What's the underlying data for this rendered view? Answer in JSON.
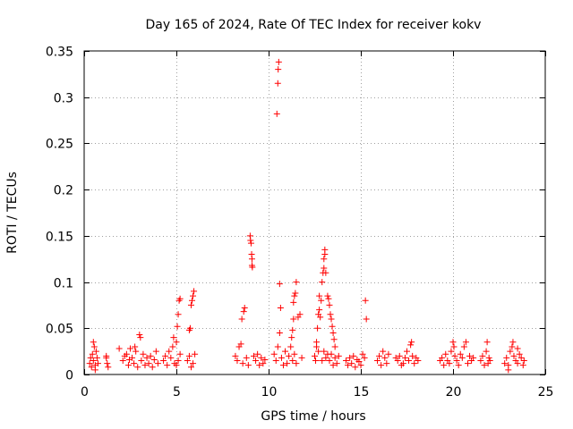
{
  "chart_data": {
    "type": "scatter",
    "title": "Day 165 of 2024, Rate Of TEC Index for receiver kokv",
    "xlabel": "GPS time / hours",
    "ylabel": "ROTI / TECUs",
    "xlim": [
      0,
      25
    ],
    "ylim": [
      0,
      0.35
    ],
    "xticks": [
      0,
      5,
      10,
      15,
      20,
      25
    ],
    "yticks": [
      0,
      0.05,
      0.1,
      0.15,
      0.2,
      0.25,
      0.3,
      0.35
    ],
    "grid": true,
    "marker": "+",
    "colors": {
      "points": "#ff0000",
      "grid": "#a0a0a0",
      "axes": "#000000"
    },
    "series": [
      {
        "name": "ROTI",
        "points": [
          [
            0.3,
            0.012
          ],
          [
            0.35,
            0.018
          ],
          [
            0.4,
            0.008
          ],
          [
            0.45,
            0.022
          ],
          [
            0.5,
            0.015
          ],
          [
            0.55,
            0.03
          ],
          [
            0.6,
            0.01
          ],
          [
            0.65,
            0.025
          ],
          [
            0.7,
            0.018
          ],
          [
            0.75,
            0.012
          ],
          [
            0.5,
            0.035
          ],
          [
            0.6,
            0.005
          ],
          [
            1.2,
            0.018
          ],
          [
            1.25,
            0.012
          ],
          [
            1.3,
            0.008
          ],
          [
            1.2,
            0.02
          ],
          [
            1.9,
            0.028
          ],
          [
            2.1,
            0.015
          ],
          [
            2.3,
            0.022
          ],
          [
            2.4,
            0.01
          ],
          [
            2.5,
            0.028
          ],
          [
            2.6,
            0.018
          ],
          [
            2.7,
            0.012
          ],
          [
            2.8,
            0.025
          ],
          [
            2.9,
            0.008
          ],
          [
            2.2,
            0.02
          ],
          [
            2.45,
            0.016
          ],
          [
            2.75,
            0.03
          ],
          [
            3.0,
            0.043
          ],
          [
            3.05,
            0.04
          ],
          [
            3.1,
            0.015
          ],
          [
            3.2,
            0.022
          ],
          [
            3.3,
            0.01
          ],
          [
            3.4,
            0.018
          ],
          [
            3.5,
            0.012
          ],
          [
            3.6,
            0.02
          ],
          [
            3.7,
            0.008
          ],
          [
            3.8,
            0.016
          ],
          [
            3.9,
            0.025
          ],
          [
            4.0,
            0.012
          ],
          [
            4.3,
            0.015
          ],
          [
            4.4,
            0.02
          ],
          [
            4.5,
            0.01
          ],
          [
            4.6,
            0.025
          ],
          [
            4.7,
            0.018
          ],
          [
            4.8,
            0.03
          ],
          [
            4.9,
            0.012
          ],
          [
            5.0,
            0.035
          ],
          [
            5.05,
            0.052
          ],
          [
            5.1,
            0.065
          ],
          [
            5.15,
            0.08
          ],
          [
            5.2,
            0.082
          ],
          [
            5.2,
            0.022
          ],
          [
            5.1,
            0.015
          ],
          [
            5.0,
            0.01
          ],
          [
            4.85,
            0.04
          ],
          [
            5.6,
            0.015
          ],
          [
            5.7,
            0.048
          ],
          [
            5.75,
            0.05
          ],
          [
            5.8,
            0.075
          ],
          [
            5.85,
            0.08
          ],
          [
            5.9,
            0.085
          ],
          [
            5.95,
            0.09
          ],
          [
            5.7,
            0.02
          ],
          [
            5.9,
            0.012
          ],
          [
            6.0,
            0.022
          ],
          [
            5.8,
            0.008
          ],
          [
            8.2,
            0.02
          ],
          [
            8.3,
            0.015
          ],
          [
            8.4,
            0.03
          ],
          [
            8.5,
            0.033
          ],
          [
            8.55,
            0.06
          ],
          [
            8.65,
            0.068
          ],
          [
            8.7,
            0.072
          ],
          [
            8.6,
            0.012
          ],
          [
            8.8,
            0.018
          ],
          [
            8.9,
            0.01
          ],
          [
            9.0,
            0.15
          ],
          [
            9.02,
            0.145
          ],
          [
            9.05,
            0.142
          ],
          [
            9.08,
            0.13
          ],
          [
            9.1,
            0.125
          ],
          [
            9.1,
            0.118
          ],
          [
            9.12,
            0.116
          ],
          [
            9.2,
            0.02
          ],
          [
            9.3,
            0.015
          ],
          [
            9.4,
            0.022
          ],
          [
            9.5,
            0.01
          ],
          [
            9.6,
            0.018
          ],
          [
            9.7,
            0.012
          ],
          [
            9.8,
            0.016
          ],
          [
            10.3,
            0.022
          ],
          [
            10.4,
            0.015
          ],
          [
            10.45,
            0.282
          ],
          [
            10.5,
            0.315
          ],
          [
            10.52,
            0.33
          ],
          [
            10.55,
            0.338
          ],
          [
            10.5,
            0.03
          ],
          [
            10.6,
            0.045
          ],
          [
            10.6,
            0.098
          ],
          [
            10.65,
            0.072
          ],
          [
            10.7,
            0.018
          ],
          [
            10.8,
            0.01
          ],
          [
            10.9,
            0.025
          ],
          [
            11.0,
            0.012
          ],
          [
            11.1,
            0.02
          ],
          [
            11.2,
            0.03
          ],
          [
            11.25,
            0.04
          ],
          [
            11.3,
            0.048
          ],
          [
            11.35,
            0.06
          ],
          [
            11.4,
            0.085
          ],
          [
            11.45,
            0.088
          ],
          [
            11.5,
            0.1
          ],
          [
            11.35,
            0.078
          ],
          [
            11.3,
            0.015
          ],
          [
            11.4,
            0.022
          ],
          [
            11.5,
            0.012
          ],
          [
            11.6,
            0.062
          ],
          [
            11.7,
            0.065
          ],
          [
            11.8,
            0.018
          ],
          [
            12.5,
            0.02
          ],
          [
            12.55,
            0.015
          ],
          [
            12.6,
            0.035
          ],
          [
            12.6,
            0.03
          ],
          [
            12.65,
            0.05
          ],
          [
            12.7,
            0.065
          ],
          [
            12.75,
            0.07
          ],
          [
            12.75,
            0.085
          ],
          [
            12.8,
            0.062
          ],
          [
            12.85,
            0.08
          ],
          [
            12.9,
            0.1
          ],
          [
            12.95,
            0.11
          ],
          [
            13.0,
            0.115
          ],
          [
            13.0,
            0.125
          ],
          [
            13.05,
            0.13
          ],
          [
            13.05,
            0.135
          ],
          [
            13.1,
            0.11
          ],
          [
            13.0,
            0.025
          ],
          [
            13.1,
            0.018
          ],
          [
            13.2,
            0.085
          ],
          [
            13.25,
            0.082
          ],
          [
            13.3,
            0.075
          ],
          [
            13.35,
            0.065
          ],
          [
            13.4,
            0.06
          ],
          [
            13.45,
            0.052
          ],
          [
            13.5,
            0.045
          ],
          [
            13.55,
            0.038
          ],
          [
            13.6,
            0.03
          ],
          [
            13.3,
            0.015
          ],
          [
            13.4,
            0.022
          ],
          [
            13.5,
            0.01
          ],
          [
            13.6,
            0.018
          ],
          [
            13.7,
            0.012
          ],
          [
            13.8,
            0.02
          ],
          [
            12.7,
            0.025
          ],
          [
            12.9,
            0.015
          ],
          [
            13.2,
            0.022
          ],
          [
            14.2,
            0.015
          ],
          [
            14.3,
            0.01
          ],
          [
            14.4,
            0.018
          ],
          [
            14.5,
            0.012
          ],
          [
            14.6,
            0.02
          ],
          [
            14.7,
            0.008
          ],
          [
            14.8,
            0.016
          ],
          [
            14.9,
            0.014
          ],
          [
            15.0,
            0.01
          ],
          [
            15.1,
            0.022
          ],
          [
            15.2,
            0.018
          ],
          [
            15.3,
            0.06
          ],
          [
            15.25,
            0.08
          ],
          [
            15.9,
            0.015
          ],
          [
            16.0,
            0.02
          ],
          [
            16.1,
            0.01
          ],
          [
            16.2,
            0.025
          ],
          [
            16.3,
            0.018
          ],
          [
            16.4,
            0.012
          ],
          [
            16.5,
            0.022
          ],
          [
            16.9,
            0.018
          ],
          [
            17.0,
            0.015
          ],
          [
            17.1,
            0.02
          ],
          [
            17.2,
            0.01
          ],
          [
            17.3,
            0.012
          ],
          [
            17.4,
            0.018
          ],
          [
            17.5,
            0.025
          ],
          [
            17.6,
            0.015
          ],
          [
            17.7,
            0.032
          ],
          [
            17.75,
            0.035
          ],
          [
            17.8,
            0.02
          ],
          [
            17.9,
            0.012
          ],
          [
            18.0,
            0.018
          ],
          [
            18.1,
            0.015
          ],
          [
            19.3,
            0.015
          ],
          [
            19.4,
            0.018
          ],
          [
            19.5,
            0.01
          ],
          [
            19.6,
            0.022
          ],
          [
            19.7,
            0.015
          ],
          [
            19.8,
            0.012
          ],
          [
            19.9,
            0.025
          ],
          [
            20.0,
            0.035
          ],
          [
            20.05,
            0.03
          ],
          [
            20.1,
            0.02
          ],
          [
            20.2,
            0.015
          ],
          [
            20.3,
            0.01
          ],
          [
            20.4,
            0.022
          ],
          [
            20.5,
            0.018
          ],
          [
            20.6,
            0.03
          ],
          [
            20.7,
            0.035
          ],
          [
            20.8,
            0.012
          ],
          [
            20.9,
            0.02
          ],
          [
            21.0,
            0.015
          ],
          [
            21.1,
            0.018
          ],
          [
            21.5,
            0.015
          ],
          [
            21.6,
            0.02
          ],
          [
            21.7,
            0.01
          ],
          [
            21.8,
            0.025
          ],
          [
            21.85,
            0.035
          ],
          [
            21.9,
            0.012
          ],
          [
            21.95,
            0.018
          ],
          [
            22.0,
            0.015
          ],
          [
            22.8,
            0.012
          ],
          [
            22.9,
            0.018
          ],
          [
            23.0,
            0.01
          ],
          [
            23.1,
            0.025
          ],
          [
            23.2,
            0.03
          ],
          [
            23.25,
            0.035
          ],
          [
            23.3,
            0.02
          ],
          [
            23.4,
            0.015
          ],
          [
            23.5,
            0.012
          ],
          [
            23.6,
            0.022
          ],
          [
            23.7,
            0.018
          ],
          [
            23.8,
            0.01
          ],
          [
            23.85,
            0.015
          ],
          [
            23.0,
            0.005
          ],
          [
            23.5,
            0.028
          ]
        ]
      }
    ]
  }
}
